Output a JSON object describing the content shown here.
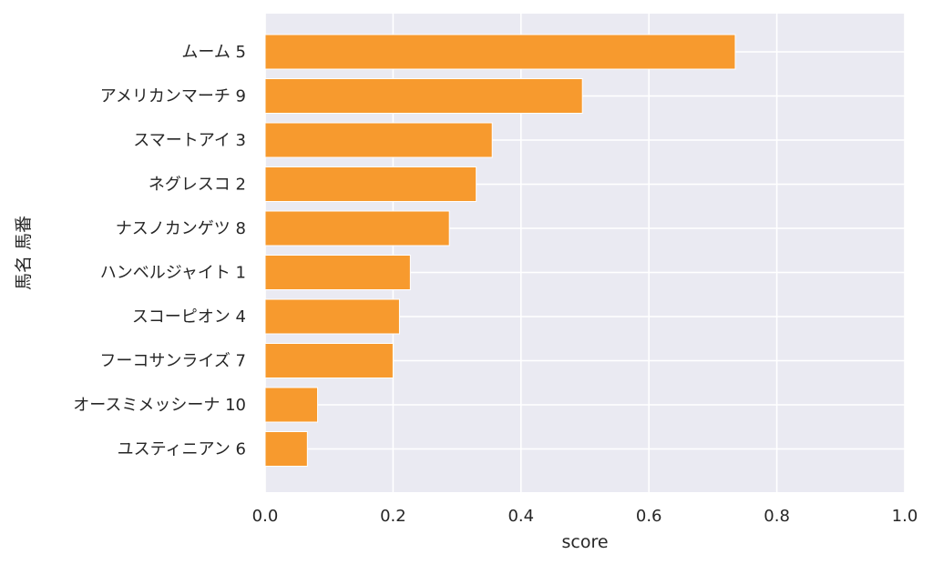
{
  "chart_data": {
    "type": "bar",
    "orientation": "horizontal",
    "xlabel": "score",
    "ylabel": "馬名 馬番",
    "xlim": [
      0,
      1.0
    ],
    "xticks": [
      "0.0",
      "0.2",
      "0.4",
      "0.6",
      "0.8",
      "1.0"
    ],
    "grid": true,
    "bar_color": "#f79a2e",
    "background_color": "#eaeaf2",
    "categories": [
      "ムーム 5",
      "アメリカンマーチ 9",
      "スマートアイ 3",
      "ネグレスコ 2",
      "ナスノカンゲツ 8",
      "ハンベルジャイト 1",
      "スコーピオン 4",
      "フーコサンライズ 7",
      "オースミメッシーナ 10",
      "ユスティニアン 6"
    ],
    "values": [
      0.735,
      0.496,
      0.355,
      0.33,
      0.288,
      0.227,
      0.21,
      0.2,
      0.082,
      0.066
    ]
  }
}
